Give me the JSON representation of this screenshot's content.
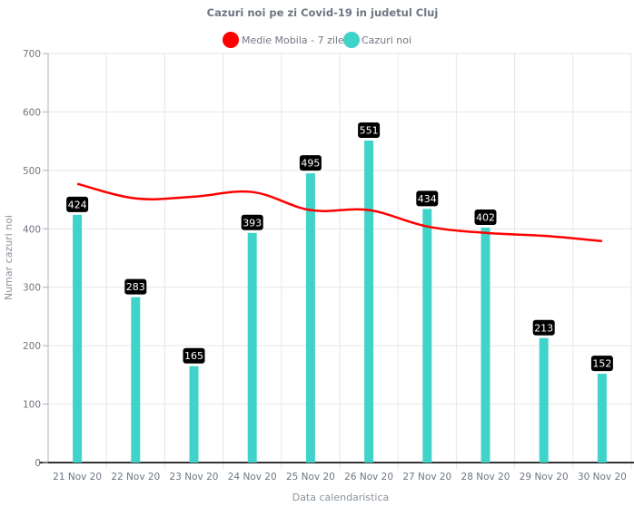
{
  "chart_data": {
    "type": "bar",
    "title": "Cazuri noi pe zi Covid-19 in judetul Cluj",
    "xlabel": "Data calendaristica",
    "ylabel": "Numar cazuri noi",
    "ylim": [
      0,
      700
    ],
    "yticks": [
      "0",
      "100",
      "200",
      "300",
      "400",
      "500",
      "600",
      "700"
    ],
    "grid": true,
    "legend_position": "top",
    "categories": [
      "21 Nov 20",
      "22 Nov 20",
      "23 Nov 20",
      "24 Nov 20",
      "25 Nov 20",
      "26 Nov 20",
      "27 Nov 20",
      "28 Nov 20",
      "29 Nov 20",
      "30 Nov 20"
    ],
    "series": [
      {
        "name": "Medie Mobila - 7 zile",
        "type": "line",
        "color": "#ff0000",
        "values": [
          477,
          452,
          455,
          463,
          432,
          432,
          404,
          393,
          388,
          379
        ]
      },
      {
        "name": "Cazuri noi",
        "type": "bar",
        "color": "#40d3c9",
        "values": [
          424,
          283,
          165,
          393,
          495,
          551,
          434,
          402,
          213,
          152
        ],
        "data_labels": [
          "424",
          "283",
          "165",
          "393",
          "495",
          "551",
          "434",
          "402",
          "213",
          "152"
        ]
      }
    ]
  }
}
